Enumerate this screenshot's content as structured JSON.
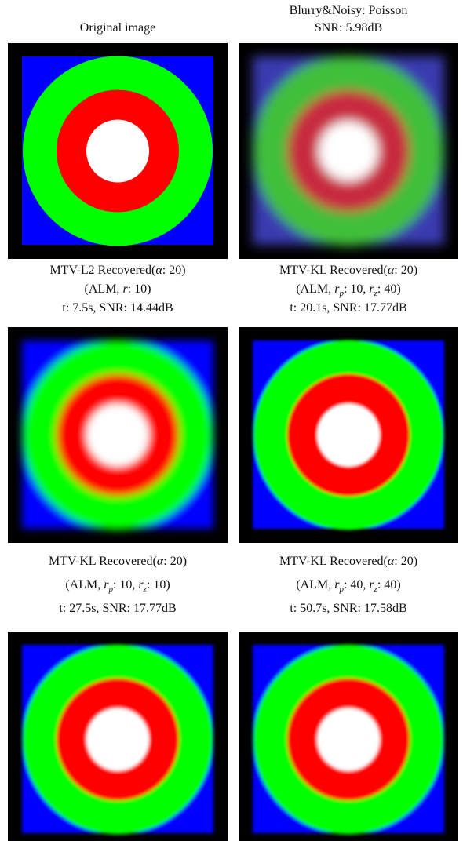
{
  "panels": [
    {
      "caption": [
        [
          "Original image"
        ]
      ]
    },
    {
      "caption": [
        [
          "Blurry&Noisy: Poisson"
        ],
        [
          "SNR: 5.98dB"
        ]
      ]
    },
    {
      "caption": [
        [
          "MTV-L2 Recovered(",
          {
            "math": "α"
          },
          ": 20)"
        ],
        [
          "(ALM, ",
          {
            "math": "r"
          },
          ": 10)"
        ],
        [
          "t: 7.5s, SNR: 14.44dB"
        ]
      ]
    },
    {
      "caption": [
        [
          "MTV-KL Recovered(",
          {
            "math": "α"
          },
          ": 20)"
        ],
        [
          "(ALM, ",
          {
            "math": "r"
          },
          {
            "sub": "p"
          },
          ": 10, ",
          {
            "math": "r"
          },
          {
            "sub": "z"
          },
          ": 40)"
        ],
        [
          "t: 20.1s, SNR: 17.77dB"
        ]
      ]
    },
    {
      "caption": [
        [
          "MTV-KL Recovered(",
          {
            "math": "α"
          },
          ": 20)"
        ],
        [
          "(ALM, ",
          {
            "math": "r"
          },
          {
            "sub": "p"
          },
          ": 10, ",
          {
            "math": "r"
          },
          {
            "sub": "z"
          },
          ": 10)"
        ],
        [
          "t: 27.5s, SNR: 17.77dB"
        ]
      ]
    },
    {
      "caption": [
        [
          "MTV-KL Recovered(",
          {
            "math": "α"
          },
          ": 20)"
        ],
        [
          "(ALM, ",
          {
            "math": "r"
          },
          {
            "sub": "p"
          },
          ": 40, ",
          {
            "math": "r"
          },
          {
            "sub": "z"
          },
          ": 40)"
        ],
        [
          "t: 50.7s, SNR: 17.58dB"
        ]
      ]
    }
  ]
}
